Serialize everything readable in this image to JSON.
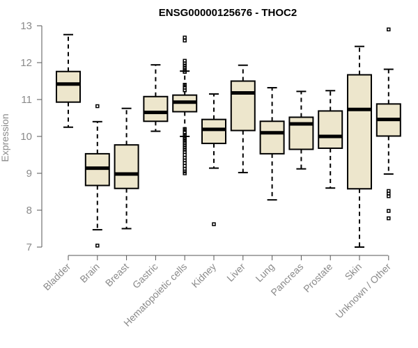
{
  "chart_data": {
    "type": "boxplot",
    "title": "ENSG00000125676 - THOC2",
    "xlabel": "",
    "ylabel": "Expression",
    "ylim": [
      7,
      13
    ],
    "yticks": [
      7,
      8,
      9,
      10,
      11,
      12,
      13
    ],
    "box_color": "#ede6cc",
    "categories": [
      "Bladder",
      "Brain",
      "Breast",
      "Gastric",
      "Hematopoietic cells",
      "Kidney",
      "Liver",
      "Lung",
      "Pancreas",
      "Prostate",
      "Skin",
      "Unknown / Other"
    ],
    "boxes": [
      {
        "category": "Bladder",
        "whisker_low": 10.25,
        "q1": 10.93,
        "median": 11.42,
        "q3": 11.76,
        "whisker_high": 12.76,
        "outliers": []
      },
      {
        "category": "Brain",
        "whisker_low": 7.47,
        "q1": 8.67,
        "median": 9.14,
        "q3": 9.53,
        "whisker_high": 10.4,
        "outliers": [
          10.82,
          7.04
        ]
      },
      {
        "category": "Breast",
        "whisker_low": 7.5,
        "q1": 8.59,
        "median": 8.98,
        "q3": 9.77,
        "whisker_high": 10.76,
        "outliers": []
      },
      {
        "category": "Gastric",
        "whisker_low": 10.14,
        "q1": 10.41,
        "median": 10.65,
        "q3": 11.08,
        "whisker_high": 11.94,
        "outliers": []
      },
      {
        "category": "Hematopoietic cells",
        "whisker_low": 10.0,
        "q1": 10.67,
        "median": 10.93,
        "q3": 11.12,
        "whisker_high": 11.77,
        "outliers": [
          12.68,
          12.6,
          12.05,
          11.98,
          11.92,
          11.86,
          11.8,
          11.75,
          11.4,
          11.32,
          11.25,
          10.2,
          10.1,
          10.04,
          9.97,
          9.93,
          9.88,
          9.82,
          9.76,
          9.7,
          9.64,
          9.58,
          9.5,
          9.42,
          9.35,
          9.28,
          9.2,
          9.12,
          9.05,
          9.0
        ]
      },
      {
        "category": "Kidney",
        "whisker_low": 9.14,
        "q1": 9.81,
        "median": 10.19,
        "q3": 10.46,
        "whisker_high": 11.15,
        "outliers": [
          7.62
        ]
      },
      {
        "category": "Liver",
        "whisker_low": 9.02,
        "q1": 10.16,
        "median": 11.18,
        "q3": 11.5,
        "whisker_high": 11.93,
        "outliers": []
      },
      {
        "category": "Lung",
        "whisker_low": 8.28,
        "q1": 9.53,
        "median": 10.1,
        "q3": 10.41,
        "whisker_high": 11.32,
        "outliers": []
      },
      {
        "category": "Pancreas",
        "whisker_low": 9.12,
        "q1": 9.65,
        "median": 10.34,
        "q3": 10.52,
        "whisker_high": 11.22,
        "outliers": []
      },
      {
        "category": "Prostate",
        "whisker_low": 8.6,
        "q1": 9.68,
        "median": 10.0,
        "q3": 10.69,
        "whisker_high": 11.24,
        "outliers": []
      },
      {
        "category": "Skin",
        "whisker_low": 7.0,
        "q1": 8.58,
        "median": 10.73,
        "q3": 11.67,
        "whisker_high": 12.44,
        "outliers": []
      },
      {
        "category": "Unknown / Other",
        "whisker_low": 8.98,
        "q1": 10.01,
        "median": 10.46,
        "q3": 10.88,
        "whisker_high": 11.82,
        "outliers": [
          12.9,
          8.52,
          8.45,
          8.38,
          7.98,
          7.78
        ]
      }
    ]
  }
}
